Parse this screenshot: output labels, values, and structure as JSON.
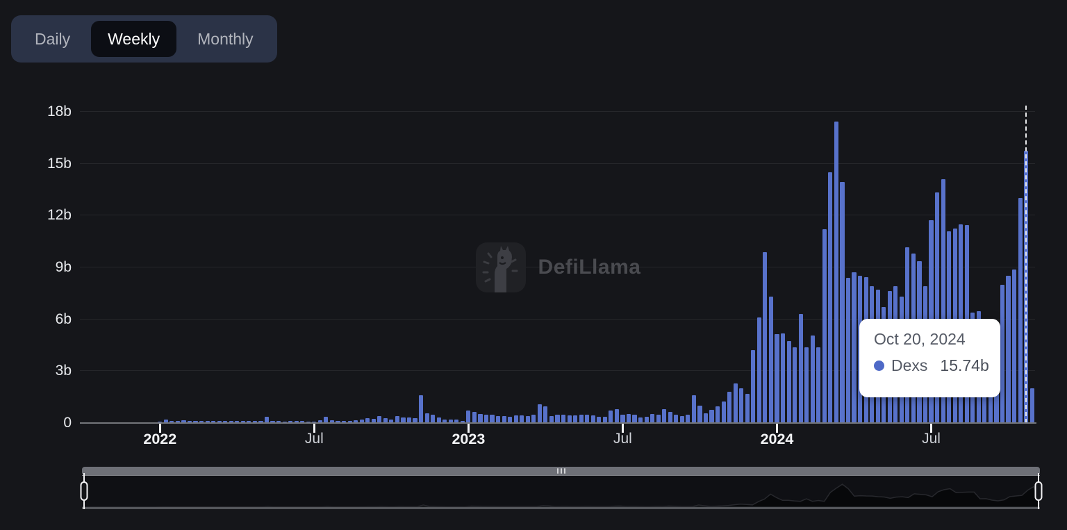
{
  "tabs": {
    "items": [
      {
        "label": "Daily",
        "selected": false
      },
      {
        "label": "Weekly",
        "selected": true
      },
      {
        "label": "Monthly",
        "selected": false
      }
    ]
  },
  "watermark": {
    "text": "DefiLlama"
  },
  "tooltip": {
    "title": "Oct 20, 2024",
    "series_label": "Dexs",
    "value_label": "15.74b"
  },
  "colors": {
    "bar": "#5872cb",
    "tooltip_dot": "#4e69c7",
    "background": "#15161a",
    "tab_container": "#2b3347",
    "tab_selected_bg": "#0c0e14",
    "gridline": "#26272b",
    "axis": "#74767b"
  },
  "chart_data": {
    "type": "bar",
    "title": "",
    "series_name": "Dexs",
    "unit": "billions USD (b)",
    "interval": "weekly",
    "start_week": "2021-10-03",
    "end_week": "2024-10-27",
    "grid": true,
    "legend_position": "none",
    "ylim": [
      0,
      18
    ],
    "y_ticks": [
      {
        "label": "0",
        "value": 0
      },
      {
        "label": "3b",
        "value": 3
      },
      {
        "label": "6b",
        "value": 6
      },
      {
        "label": "9b",
        "value": 9
      },
      {
        "label": "12b",
        "value": 12
      },
      {
        "label": "15b",
        "value": 15
      },
      {
        "label": "18b",
        "value": 18
      }
    ],
    "x_ticks": [
      {
        "label": "2022",
        "index": 13,
        "bold": true
      },
      {
        "label": "Jul",
        "index": 39,
        "bold": false
      },
      {
        "label": "2023",
        "index": 65,
        "bold": true
      },
      {
        "label": "Jul",
        "index": 91,
        "bold": false
      },
      {
        "label": "2024",
        "index": 117,
        "bold": true
      },
      {
        "label": "Jul",
        "index": 143,
        "bold": false
      }
    ],
    "highlight": {
      "index": 159,
      "date": "Oct 20, 2024",
      "value": 15.74,
      "dashed_line": true
    },
    "values": [
      0.03,
      0.04,
      0.04,
      0.06,
      0.05,
      0.04,
      0.05,
      0.04,
      0.04,
      0.05,
      0.04,
      0.04,
      0.05,
      0.08,
      0.19,
      0.13,
      0.11,
      0.16,
      0.13,
      0.11,
      0.11,
      0.13,
      0.11,
      0.13,
      0.11,
      0.13,
      0.11,
      0.13,
      0.11,
      0.13,
      0.11,
      0.37,
      0.11,
      0.11,
      0.1,
      0.13,
      0.11,
      0.11,
      0.1,
      0.1,
      0.16,
      0.37,
      0.16,
      0.13,
      0.13,
      0.13,
      0.16,
      0.19,
      0.29,
      0.24,
      0.4,
      0.27,
      0.19,
      0.4,
      0.33,
      0.33,
      0.27,
      1.6,
      0.56,
      0.47,
      0.33,
      0.2,
      0.2,
      0.2,
      0.13,
      0.74,
      0.64,
      0.54,
      0.5,
      0.47,
      0.4,
      0.4,
      0.37,
      0.43,
      0.43,
      0.4,
      0.5,
      1.07,
      0.96,
      0.4,
      0.47,
      0.5,
      0.43,
      0.43,
      0.5,
      0.5,
      0.43,
      0.37,
      0.37,
      0.74,
      0.8,
      0.47,
      0.54,
      0.47,
      0.33,
      0.37,
      0.54,
      0.47,
      0.8,
      0.64,
      0.47,
      0.4,
      0.47,
      1.6,
      1.0,
      0.55,
      0.75,
      0.95,
      1.25,
      1.8,
      2.3,
      2.0,
      1.7,
      4.2,
      6.1,
      9.9,
      7.3,
      5.15,
      5.2,
      4.75,
      4.4,
      6.3,
      4.4,
      5.05,
      4.4,
      11.2,
      14.5,
      17.45,
      13.95,
      8.4,
      8.7,
      8.5,
      8.45,
      7.9,
      7.7,
      6.7,
      7.65,
      7.9,
      7.3,
      10.15,
      9.8,
      9.35,
      7.9,
      11.75,
      13.35,
      14.1,
      11.1,
      11.25,
      11.5,
      11.45,
      6.4,
      6.45,
      5.3,
      4.8,
      5.5,
      8.0,
      8.5,
      8.9,
      13.0,
      15.74,
      2.0
    ]
  },
  "brush": {
    "left_handle": "range-start",
    "right_handle": "range-end",
    "grip": "drag-scrollbar"
  }
}
